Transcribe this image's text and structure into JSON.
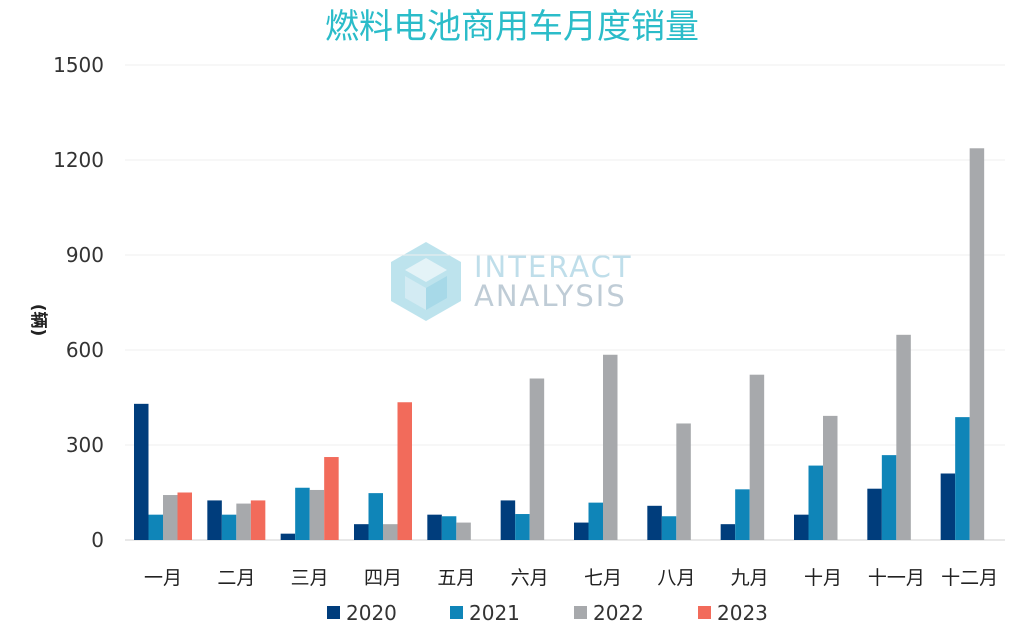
{
  "chart_data": {
    "type": "bar",
    "title": "燃料电池商用车月度销量",
    "ylabel": "(辆)",
    "xlabel": "",
    "ylim": [
      0,
      1500
    ],
    "yticks": [
      0,
      300,
      600,
      900,
      1200,
      1500
    ],
    "grid": true,
    "legend_position": "bottom",
    "categories": [
      "一月",
      "二月",
      "三月",
      "四月",
      "五月",
      "六月",
      "七月",
      "八月",
      "九月",
      "十月",
      "十一月",
      "十二月"
    ],
    "series": [
      {
        "name": "2020",
        "color": "#003d7c",
        "values": [
          430,
          125,
          20,
          50,
          80,
          125,
          55,
          108,
          50,
          80,
          162,
          210
        ]
      },
      {
        "name": "2021",
        "color": "#0f85b8",
        "values": [
          80,
          80,
          165,
          148,
          75,
          82,
          118,
          75,
          160,
          235,
          268,
          388
        ]
      },
      {
        "name": "2022",
        "color": "#a7a9ac",
        "values": [
          142,
          115,
          158,
          50,
          55,
          510,
          585,
          368,
          522,
          392,
          648,
          1237
        ]
      },
      {
        "name": "2023",
        "color": "#f26b5b",
        "values": [
          150,
          125,
          262,
          435,
          null,
          null,
          null,
          null,
          null,
          null,
          null,
          null
        ]
      }
    ]
  },
  "watermark": {
    "line1": "INTERACT",
    "line2": "ANALYSIS",
    "color_text": "#b9dbe8",
    "color_logo": "#a9dbe9"
  }
}
